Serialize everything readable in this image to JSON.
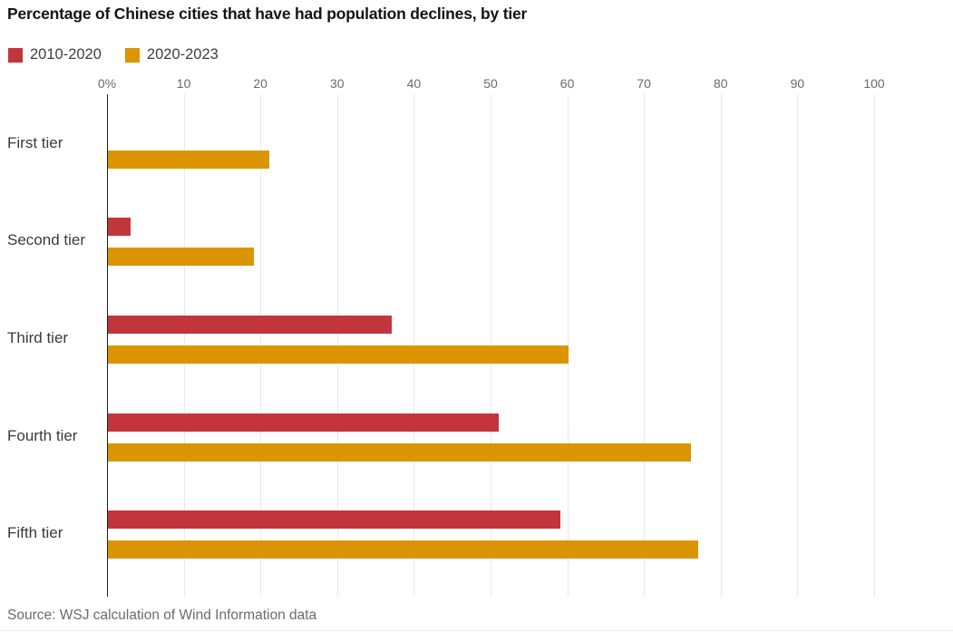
{
  "title": "Percentage of Chinese cities that have had population declines, by tier",
  "source": "Source: WSJ calculation of Wind Information data",
  "legend": {
    "items": [
      {
        "label": "2010-2020",
        "color": "#c3353d"
      },
      {
        "label": "2020-2023",
        "color": "#db9502"
      }
    ]
  },
  "chart_data": {
    "type": "bar",
    "orientation": "horizontal",
    "title": "Percentage of Chinese cities that have had population declines, by tier",
    "categories": [
      "First tier",
      "Second tier",
      "Third tier",
      "Fourth tier",
      "Fifth tier"
    ],
    "series": [
      {
        "name": "2010-2020",
        "color": "#c3353d",
        "values": [
          0,
          3,
          37,
          51,
          59
        ]
      },
      {
        "name": "2020-2023",
        "color": "#db9502",
        "values": [
          21,
          19,
          60,
          76,
          77
        ]
      }
    ],
    "xlim": [
      0,
      100
    ],
    "x_ticks": [
      0,
      10,
      20,
      30,
      40,
      50,
      60,
      70,
      80,
      90,
      100
    ],
    "x_tick_labels": [
      "0%",
      "10",
      "20",
      "30",
      "40",
      "50",
      "60",
      "70",
      "80",
      "90",
      "100"
    ],
    "unit": "percent",
    "grid": "vertical",
    "legend_position": "top-left"
  },
  "colors": {
    "grid": "#e9e9e9",
    "axis": "#1f1f1f",
    "tick_label": "#6b6b6b",
    "category_label": "#3b3b3b",
    "title": "#141414",
    "source": "#6b6b6b"
  }
}
